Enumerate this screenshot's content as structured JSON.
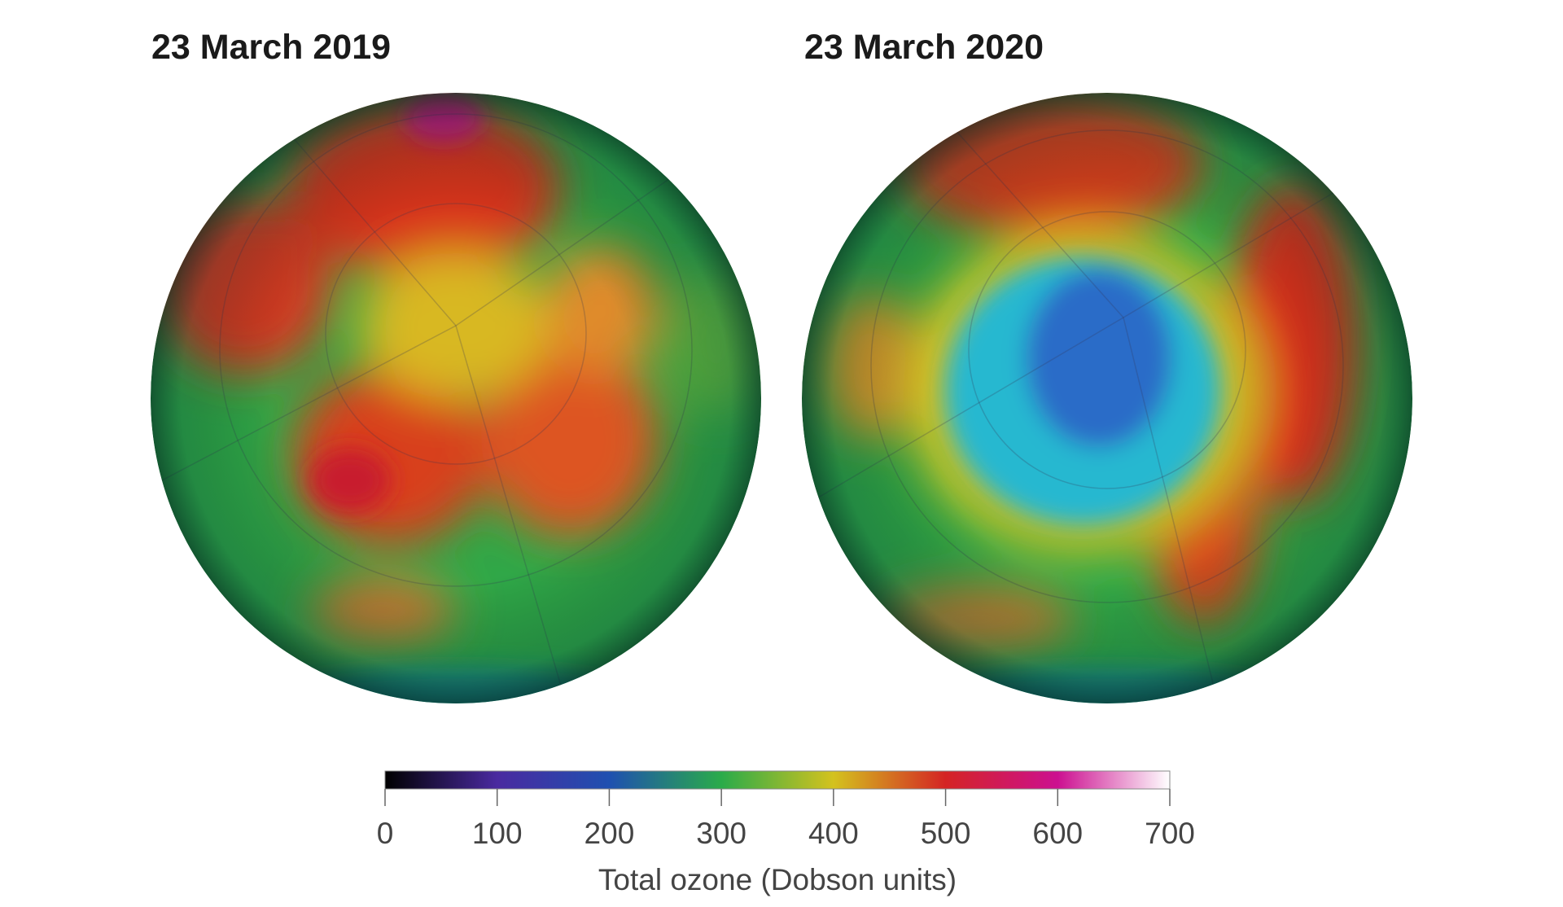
{
  "maps": [
    {
      "title": "23 March 2019"
    },
    {
      "title": "23 March 2020"
    }
  ],
  "colorbar": {
    "label": "Total ozone (Dobson units)",
    "range": [
      0,
      700
    ],
    "ticks": [
      0,
      100,
      200,
      300,
      400,
      500,
      600,
      700
    ],
    "colors": [
      "#000000",
      "#4a2aa0",
      "#1f50b0",
      "#2aab4a",
      "#d4c21e",
      "#d42424",
      "#cc1090",
      "#ffffff"
    ]
  }
}
